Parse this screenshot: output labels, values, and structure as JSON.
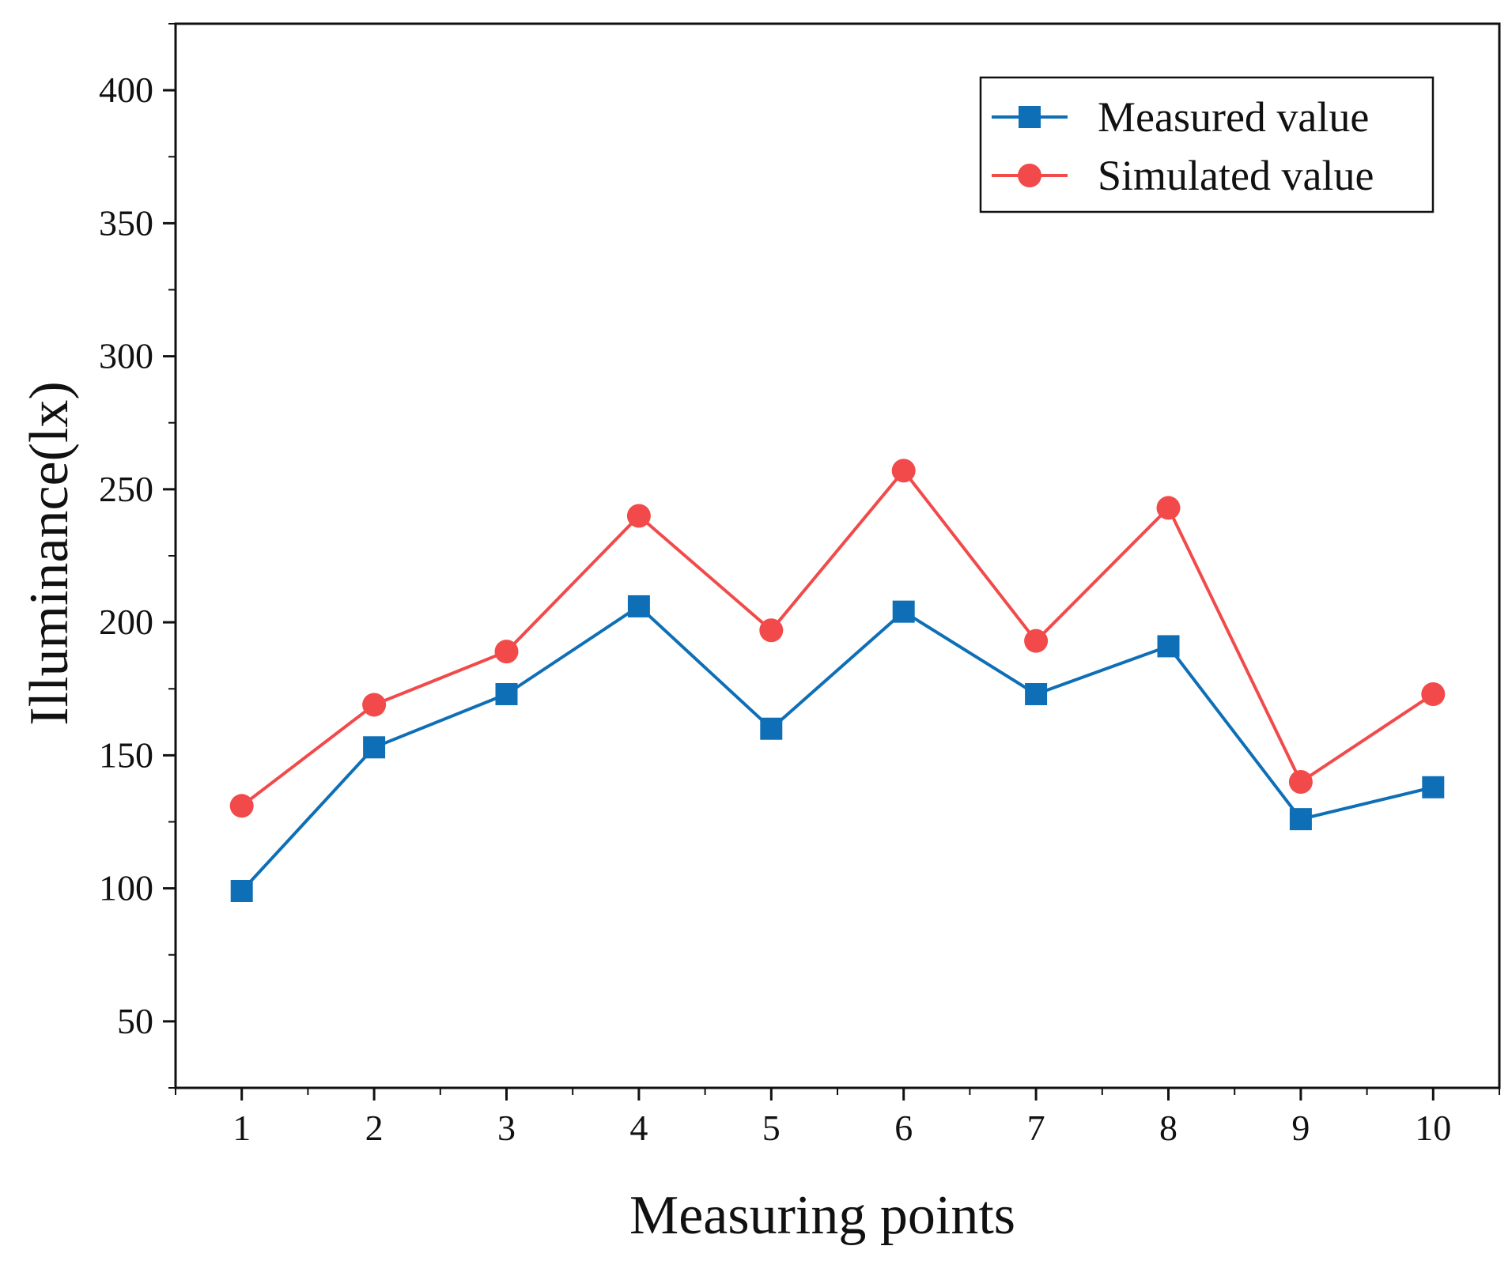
{
  "chart_data": {
    "type": "line",
    "xlabel": "Measuring points",
    "ylabel": "Illuminance(lx)",
    "x": [
      1,
      2,
      3,
      4,
      5,
      6,
      7,
      8,
      9,
      10
    ],
    "xlim": [
      0.5,
      10.5
    ],
    "xticks": [
      "1",
      "2",
      "3",
      "4",
      "5",
      "6",
      "7",
      "8",
      "9",
      "10"
    ],
    "ylim": [
      25,
      425
    ],
    "yticks": [
      "50",
      "100",
      "150",
      "200",
      "250",
      "300",
      "350",
      "400"
    ],
    "grid": false,
    "legend_position": "top-right",
    "series": [
      {
        "name": "Measured value",
        "color": "#0f6fb6",
        "marker": "square",
        "values": [
          99,
          153,
          173,
          206,
          160,
          204,
          173,
          191,
          126,
          138
        ]
      },
      {
        "name": "Simulated value",
        "color": "#f24a4a",
        "marker": "circle",
        "values": [
          131,
          169,
          189,
          240,
          197,
          257,
          193,
          243,
          140,
          173
        ]
      }
    ]
  }
}
